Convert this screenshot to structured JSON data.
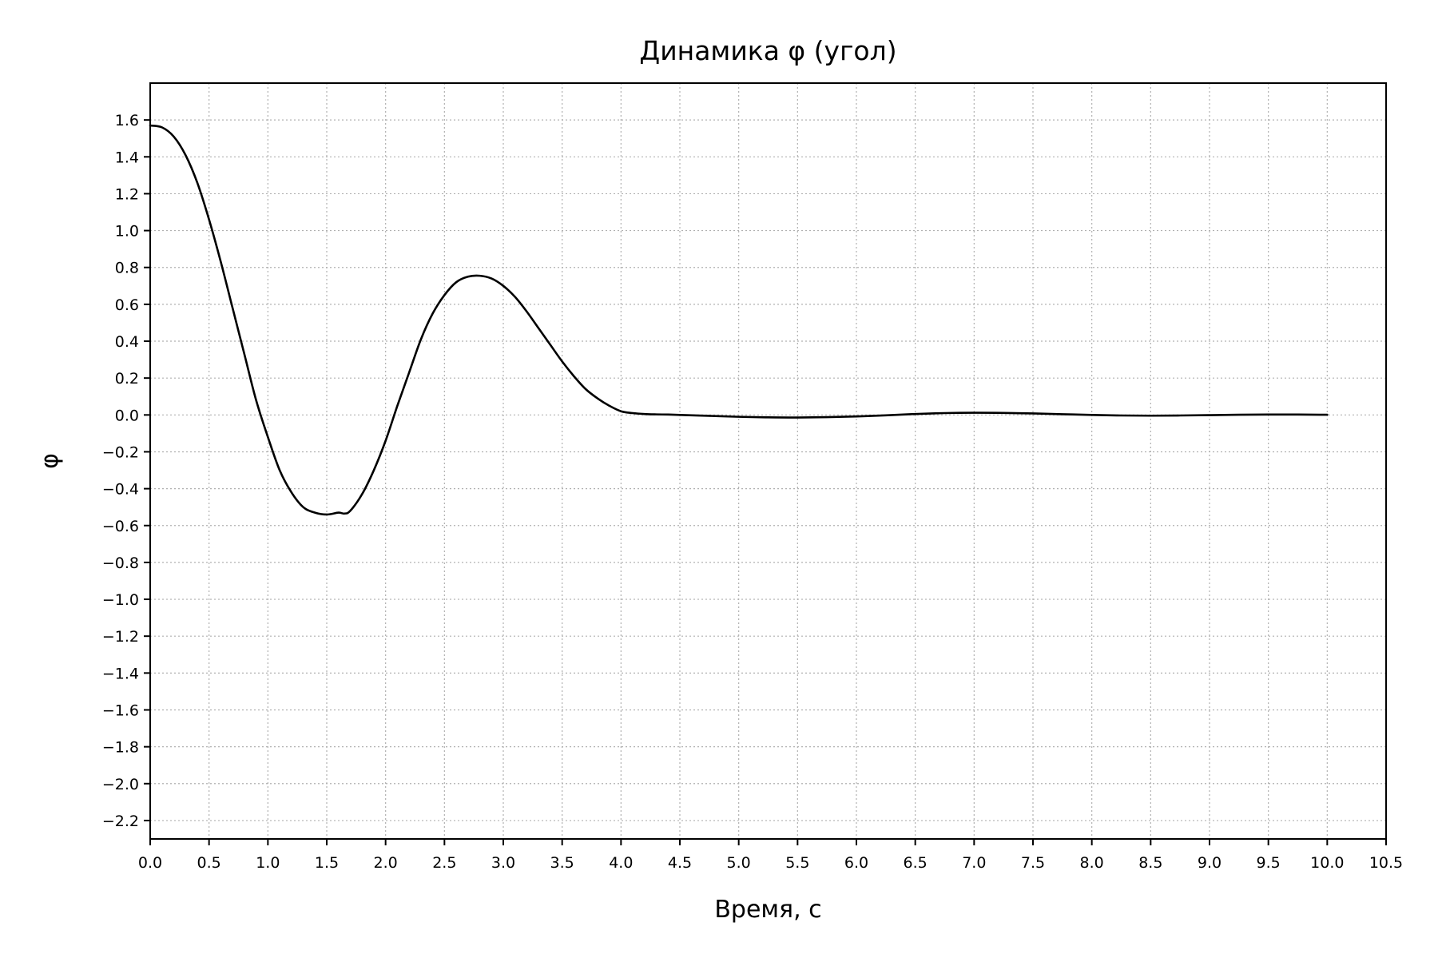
{
  "chart_data": {
    "type": "line",
    "title": "Динамика φ (угол)",
    "xlabel": "Время, с",
    "ylabel": "φ",
    "xlim": [
      0,
      10.5
    ],
    "ylim": [
      -2.3,
      1.8
    ],
    "x_ticks": [
      0.0,
      0.5,
      1.0,
      1.5,
      2.0,
      2.5,
      3.0,
      3.5,
      4.0,
      4.5,
      5.0,
      5.5,
      6.0,
      6.5,
      7.0,
      7.5,
      8.0,
      8.5,
      9.0,
      9.5,
      10.0,
      10.5
    ],
    "x_tick_labels": [
      "0.0",
      "0.5",
      "1.0",
      "1.5",
      "2.0",
      "2.5",
      "3.0",
      "3.5",
      "4.0",
      "4.5",
      "5.0",
      "5.5",
      "6.0",
      "6.5",
      "7.0",
      "7.5",
      "8.0",
      "8.5",
      "9.0",
      "9.5",
      "10.0",
      "10.5"
    ],
    "y_ticks": [
      1.6,
      1.4,
      1.2,
      1.0,
      0.8,
      0.6,
      0.4,
      0.2,
      0.0,
      -0.2,
      -0.4,
      -0.6,
      -0.8,
      -1.0,
      -1.2,
      -1.4,
      -1.6,
      -1.8,
      -2.0,
      -2.2
    ],
    "y_tick_labels": [
      "1.6",
      "1.4",
      "1.2",
      "1.0",
      "0.8",
      "0.6",
      "0.4",
      "0.2",
      "0.0",
      "−0.2",
      "−0.4",
      "−0.6",
      "−0.8",
      "−1.0",
      "−1.2",
      "−1.4",
      "−1.6",
      "−1.8",
      "−2.0",
      "−2.2"
    ],
    "grid": true,
    "series": [
      {
        "color": "#000000",
        "x": [
          0.0,
          0.1,
          0.2,
          0.3,
          0.4,
          0.5,
          0.6,
          0.7,
          0.8,
          0.9,
          1.0,
          1.1,
          1.2,
          1.3,
          1.4,
          1.5,
          1.6,
          1.65,
          1.7,
          1.8,
          1.9,
          2.0,
          2.1,
          2.2,
          2.3,
          2.4,
          2.5,
          2.6,
          2.7,
          2.8,
          2.9,
          3.0,
          3.1,
          3.2,
          3.3,
          3.4,
          3.5,
          3.6,
          3.7,
          3.8,
          3.9,
          4.0,
          4.1,
          4.2,
          4.3,
          4.4,
          4.5,
          4.75,
          5.0,
          5.25,
          5.5,
          5.75,
          6.0,
          6.25,
          6.5,
          6.75,
          7.0,
          7.25,
          7.5,
          7.75,
          8.0,
          8.25,
          8.5,
          8.75,
          9.0,
          9.25,
          9.5,
          9.75,
          10.0
        ],
        "y": [
          1.57,
          1.56,
          1.51,
          1.41,
          1.26,
          1.06,
          0.83,
          0.58,
          0.33,
          0.08,
          -0.12,
          -0.3,
          -0.42,
          -0.5,
          -0.53,
          -0.54,
          -0.53,
          -0.535,
          -0.52,
          -0.43,
          -0.3,
          -0.14,
          0.05,
          0.23,
          0.41,
          0.55,
          0.65,
          0.72,
          0.75,
          0.755,
          0.74,
          0.7,
          0.64,
          0.56,
          0.47,
          0.38,
          0.29,
          0.21,
          0.14,
          0.09,
          0.05,
          0.02,
          0.01,
          0.005,
          0.003,
          0.002,
          0.0,
          -0.005,
          -0.01,
          -0.013,
          -0.014,
          -0.012,
          -0.008,
          -0.002,
          0.005,
          0.01,
          0.012,
          0.011,
          0.008,
          0.004,
          0.0,
          -0.003,
          -0.004,
          -0.003,
          -0.001,
          0.001,
          0.002,
          0.002,
          0.001
        ]
      }
    ]
  }
}
